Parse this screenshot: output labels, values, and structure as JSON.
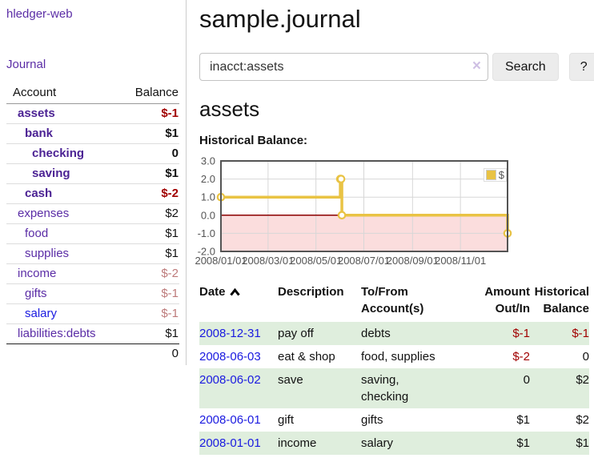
{
  "sidebar": {
    "app_title": "hledger-web",
    "nav_journal_label": "Journal",
    "accounts_table": {
      "account_header": "Account",
      "balance_header": "Balance",
      "rows": [
        {
          "name": "assets",
          "balance": "$-1",
          "level": 1,
          "bold": true,
          "balance_style": "neg-strong"
        },
        {
          "name": "bank",
          "balance": "$1",
          "level": 2,
          "bold": true,
          "balance_style": "normal"
        },
        {
          "name": "checking",
          "balance": "0",
          "level": 3,
          "bold": true,
          "balance_style": "normal"
        },
        {
          "name": "saving",
          "balance": "$1",
          "level": 3,
          "bold": true,
          "balance_style": "normal"
        },
        {
          "name": "cash",
          "balance": "$-2",
          "level": 2,
          "bold": true,
          "balance_style": "neg-strong"
        },
        {
          "name": "expenses",
          "balance": "$2",
          "level": 1,
          "bold": false,
          "balance_style": "normal"
        },
        {
          "name": "food",
          "balance": "$1",
          "level": 2,
          "bold": false,
          "balance_style": "normal"
        },
        {
          "name": "supplies",
          "balance": "$1",
          "level": 2,
          "bold": false,
          "balance_style": "normal"
        },
        {
          "name": "income",
          "balance": "$-2",
          "level": 1,
          "bold": false,
          "balance_style": "neg-muted"
        },
        {
          "name": "gifts",
          "balance": "$-1",
          "level": 2,
          "bold": false,
          "balance_style": "neg-muted"
        },
        {
          "name": "salary",
          "balance": "$-1",
          "level": 2,
          "bold": false,
          "balance_style": "neg-muted",
          "link_color": "blue"
        },
        {
          "name": "liabilities:debts",
          "balance": "$1",
          "level": 1,
          "bold": false,
          "balance_style": "normal"
        }
      ],
      "total": "0"
    }
  },
  "header": {
    "title": "sample.journal"
  },
  "search": {
    "value": "inacct:assets",
    "clear_icon": "×",
    "button_label": "Search",
    "help_label": "?"
  },
  "account_page": {
    "title": "assets",
    "chart_label": "Historical Balance:"
  },
  "chart_data": {
    "type": "line",
    "title": "Historical Balance:",
    "series": [
      {
        "name": "$",
        "color": "#e9c344",
        "step": true,
        "points": [
          {
            "date": "2008-01-01",
            "value": 1
          },
          {
            "date": "2008-06-01",
            "value": 2
          },
          {
            "date": "2008-06-02",
            "value": 2
          },
          {
            "date": "2008-06-03",
            "value": 0
          },
          {
            "date": "2008-12-31",
            "value": -1
          }
        ]
      }
    ],
    "xlim": [
      "2008-01-01",
      "2008-12-31"
    ],
    "ylim": [
      -2,
      3
    ],
    "y_ticks": [
      "3.0",
      "2.0",
      "1.0",
      "0.0",
      "-1.0",
      "-2.0"
    ],
    "x_ticks": [
      {
        "date": "2008-01-01",
        "label": "2008/01/01"
      },
      {
        "date": "2008-03-01",
        "label": "2008/03/01"
      },
      {
        "date": "2008-05-01",
        "label": "2008/05/01"
      },
      {
        "date": "2008-07-01",
        "label": "2008/07/01"
      },
      {
        "date": "2008-09-01",
        "label": "2008/09/01"
      },
      {
        "date": "2008-11-01",
        "label": "2008/11/01"
      }
    ],
    "legend": {
      "label": "$",
      "position": "top-right"
    },
    "grid": true,
    "negative_region_color": "#fbdddd",
    "zero_line_color": "#8b0000",
    "grid_color": "#d7d7d7",
    "border_color": "#545454",
    "axis_label_color": "#545454"
  },
  "register_table": {
    "headers": {
      "date": "Date",
      "description": "Description",
      "accounts": "To/From Account(s)",
      "amount": "Amount Out/In",
      "balance": "Historical Balance"
    },
    "rows": [
      {
        "date": "2008-12-31",
        "description": "pay off",
        "accounts": "debts",
        "amount": "$-1",
        "balance": "$-1"
      },
      {
        "date": "2008-06-03",
        "description": "eat & shop",
        "accounts": "food, supplies",
        "amount": "$-2",
        "balance": "0"
      },
      {
        "date": "2008-06-02",
        "description": "save",
        "accounts": "saving, checking",
        "amount": "0",
        "balance": "$2"
      },
      {
        "date": "2008-06-01",
        "description": "gift",
        "accounts": "gifts",
        "amount": "$1",
        "balance": "$2"
      },
      {
        "date": "2008-01-01",
        "description": "income",
        "accounts": "salary",
        "amount": "$1",
        "balance": "$1"
      }
    ]
  },
  "colors": {
    "purple_link": "#5b2da6",
    "purple_link_bold": "#4c2394",
    "blue_link": "#1a1ae0",
    "negative_strong": "#a10000",
    "negative_muted": "#bd7a7a",
    "row_stripe_green": "#dfeedd",
    "chart_series_gold": "#e9c344"
  }
}
